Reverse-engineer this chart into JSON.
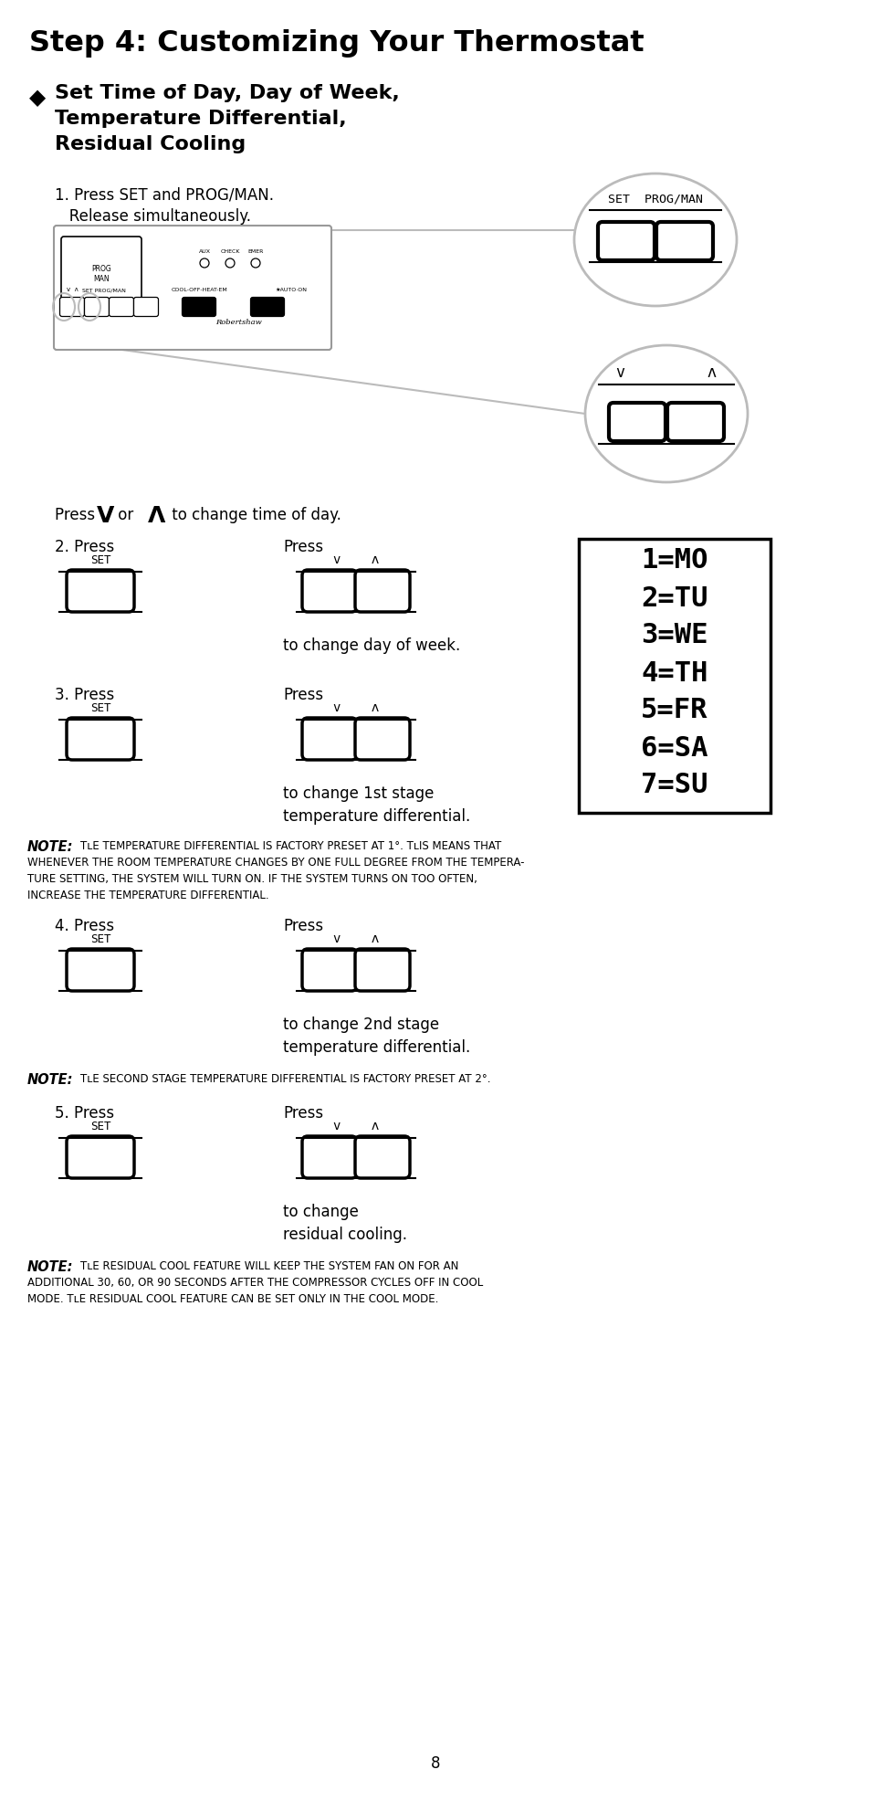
{
  "title": "Step 4: Customizing Your Thermostat",
  "bg_color": "#ffffff",
  "page_number": "8",
  "day_codes": [
    "1=MO",
    "2=TU",
    "3=WE",
    "4=TH",
    "5=FR",
    "6=SA",
    "7=SU"
  ],
  "step1_a": "1. Press SET and PROG/MAN.",
  "step1_b": "   Release simultaneously.",
  "press_time": "Press",
  "press_v_down": "V",
  "press_or": "or",
  "press_v_up": "Λ",
  "press_time_end": "to change time of day.",
  "step2_label": "2. Press",
  "step2_press": "Press",
  "step2_desc": "to change day of week.",
  "step3_label": "3. Press",
  "step3_press": "Press",
  "step3_desc": "to change 1st stage\ntemperature differential.",
  "note1_bold": "NOTE:",
  "note1_line1": "TʟE TEMPERATURE DIFFERENTIAL IS FACTORY PRESET AT 1°. TʟIS MEANS THAT",
  "note1_line2": "WHENEVER THE ROOM TEMPERATURE CHANGES BY ONE FULL DEGREE FROM THE TEMPERA-",
  "note1_line3": "TURE SETTING, THE SYSTEM WILL TURN ON. IF THE SYSTEM TURNS ON TOO OFTEN,",
  "note1_line4": "INCREASE THE TEMPERATURE DIFFERENTIAL.",
  "step4_label": "4. Press",
  "step4_press": "Press",
  "step4_desc": "to change 2nd stage\ntemperature differential.",
  "note2_bold": "NOTE:",
  "note2_body": "TʟE SECOND STAGE TEMPERATURE DIFFERENTIAL IS FACTORY PRESET AT 2°.",
  "step5_label": "5. Press",
  "step5_press": "Press",
  "step5_desc": "to change\nresidual cooling.",
  "note3_bold": "NOTE:",
  "note3_line1": "TʟE RESIDUAL COOL FEATURE WILL KEEP THE SYSTEM FAN ON FOR AN",
  "note3_line2": "ADDITIONAL 30, 60, OR 90 SECONDS AFTER THE COMPRESSOR CYCLES OFF IN COOL",
  "note3_line3": "MODE. TʟE RESIDUAL COOL FEATURE CAN BE SET ONLY IN THE COOL MODE."
}
